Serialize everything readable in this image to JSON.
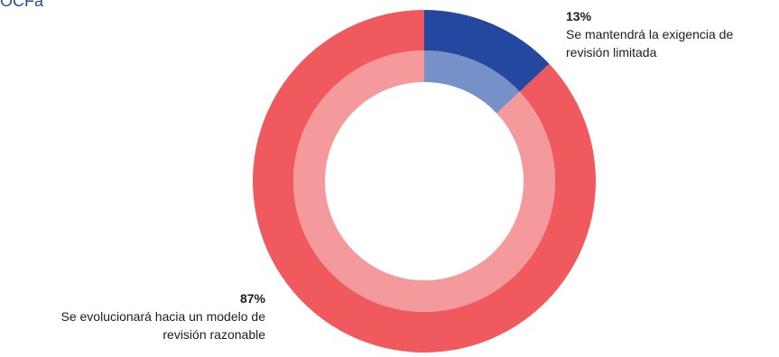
{
  "header": {
    "cut_text": "OCFa"
  },
  "chart_data": {
    "type": "pie",
    "style": "donut",
    "categories": [
      "Se mantendrá la exigencia de revisión limitada",
      "Se evolucionará hacia un modelo de revisión razonable"
    ],
    "values": [
      13,
      87
    ],
    "data_labels": [
      "13%",
      "87%"
    ],
    "colors": {
      "outer": [
        "#2448a0",
        "#f05a5f"
      ],
      "inner": [
        "#7890c8",
        "#f59a9c"
      ]
    },
    "legend": "none"
  }
}
